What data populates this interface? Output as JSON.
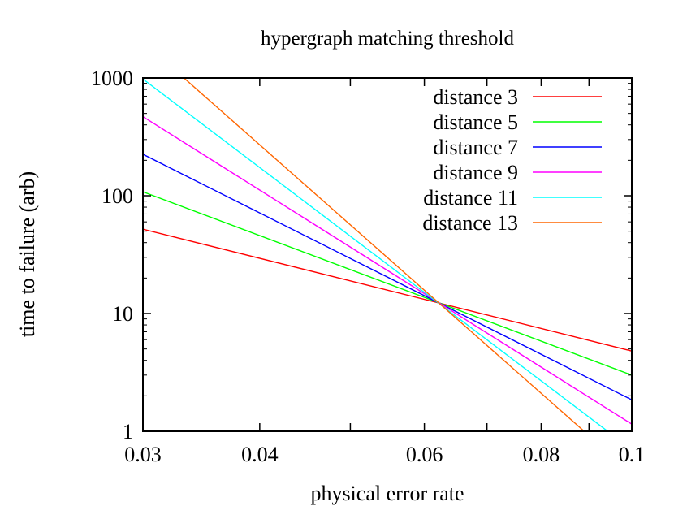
{
  "chart_data": {
    "type": "line",
    "title": "hypergraph matching threshold",
    "xlabel": "physical error rate",
    "ylabel": "time to failure (arb)",
    "x_scale": "log",
    "y_scale": "log",
    "xlim": [
      0.03,
      0.1
    ],
    "ylim": [
      1,
      1000
    ],
    "x_ticks": [
      0.03,
      0.04,
      0.06,
      0.08,
      0.1
    ],
    "x_tick_labels": [
      "0.03",
      "0.04",
      "0.06",
      "0.08",
      "0.1"
    ],
    "x_minor_ticks": [
      0.05,
      0.07,
      0.09
    ],
    "y_ticks": [
      1,
      10,
      100,
      1000
    ],
    "y_tick_labels": [
      "1",
      "10",
      "100",
      "1000"
    ],
    "grid": false,
    "legend_position": "top-right",
    "crossing_point": {
      "x": 0.063,
      "y": 12
    },
    "series": [
      {
        "name": "distance 3",
        "color": "#ff0000",
        "x": [
          0.03,
          0.1
        ],
        "y": [
          52,
          4.8
        ]
      },
      {
        "name": "distance 5",
        "color": "#00ff00",
        "x": [
          0.03,
          0.1
        ],
        "y": [
          108,
          3.0
        ]
      },
      {
        "name": "distance 7",
        "color": "#0000ff",
        "x": [
          0.03,
          0.1
        ],
        "y": [
          225,
          1.85
        ]
      },
      {
        "name": "distance 9",
        "color": "#ff00ff",
        "x": [
          0.03,
          0.1
        ],
        "y": [
          470,
          1.15
        ]
      },
      {
        "name": "distance 11",
        "color": "#00ffff",
        "x": [
          0.03,
          0.1
        ],
        "y": [
          980,
          0.7
        ]
      },
      {
        "name": "distance 13",
        "color": "#ff6600",
        "x": [
          0.03,
          0.1
        ],
        "y": [
          2030,
          0.44
        ]
      }
    ]
  }
}
